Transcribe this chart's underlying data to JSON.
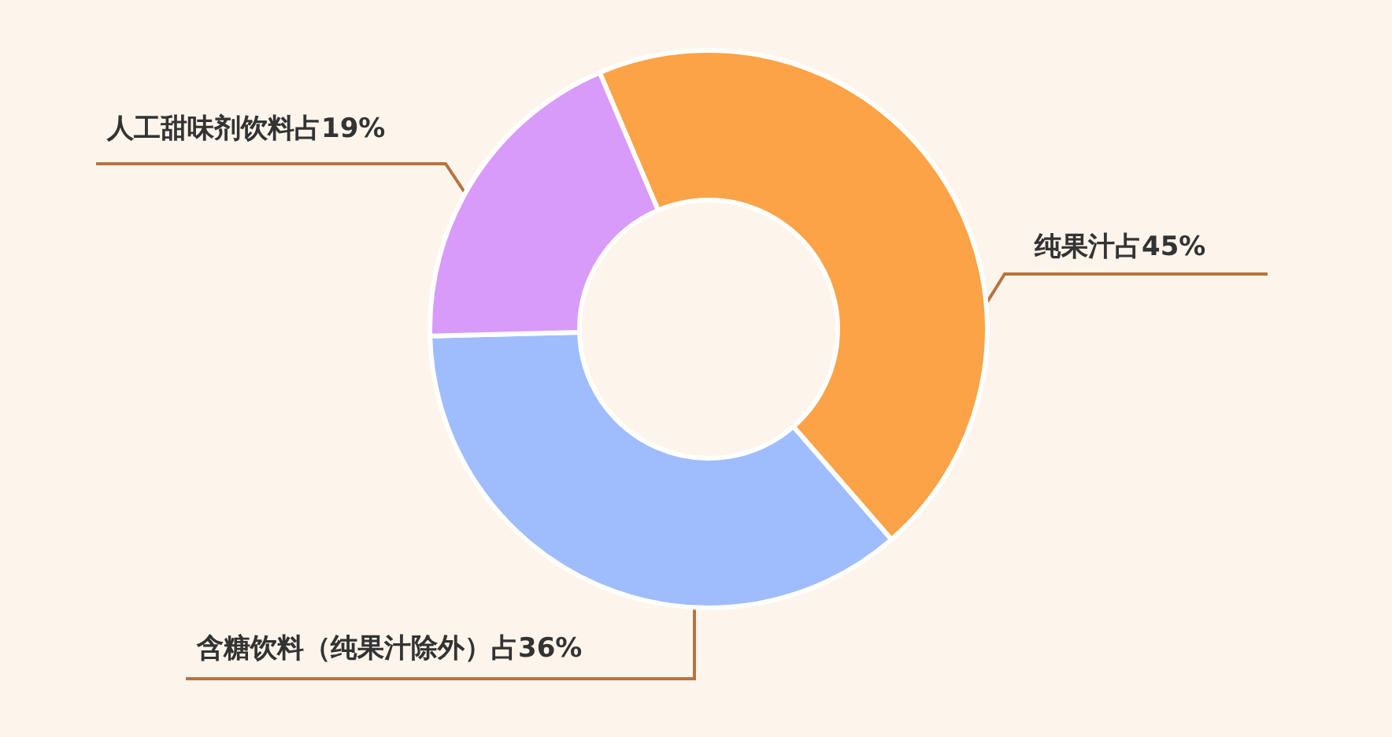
{
  "chart_data": {
    "type": "donut",
    "categories": [
      "纯果汁",
      "含糖饮料（纯果汁除外）",
      "人工甜味剂饮料"
    ],
    "values": [
      45,
      36,
      19
    ],
    "value_labels": [
      "占45%",
      "占36%",
      "占19%"
    ],
    "colors": [
      "#fba346",
      "#9fbcfd",
      "#d89bf9"
    ]
  }
}
